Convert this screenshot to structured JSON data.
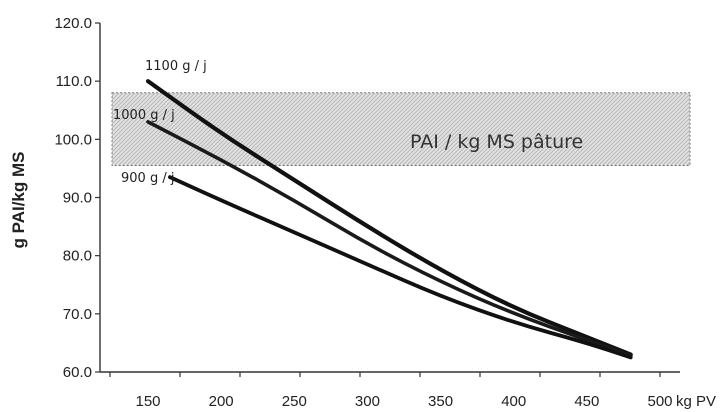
{
  "chart_data": {
    "type": "line",
    "title": "",
    "xlabel": "",
    "ylabel": "g PAI/kg MS",
    "x_unit_label": "kg PV",
    "xlim": [
      100,
      500
    ],
    "ylim": [
      60.0,
      120.0
    ],
    "x_ticks": [
      150,
      200,
      250,
      300,
      350,
      400,
      450,
      500
    ],
    "y_ticks": [
      "60.0",
      "70.0",
      "80.0",
      "90.0",
      "100.0",
      "110.0",
      "120.0"
    ],
    "grid": false,
    "band": {
      "label": "PAI / kg MS pâture",
      "y_range": [
        95.5,
        108
      ],
      "x_range": [
        100,
        500
      ]
    },
    "series": [
      {
        "name": "1100 g / j",
        "x": [
          150,
          200,
          250,
          300,
          350,
          400,
          450,
          480
        ],
        "y": [
          110.0,
          101.0,
          93.0,
          85.0,
          77.5,
          71.0,
          66.0,
          63.0
        ]
      },
      {
        "name": "1000 g / j",
        "x": [
          150,
          200,
          250,
          300,
          350,
          400,
          450,
          480
        ],
        "y": [
          103.0,
          96.5,
          89.5,
          82.0,
          75.5,
          70.0,
          65.5,
          62.8
        ]
      },
      {
        "name": "900 g / j",
        "x": [
          165,
          200,
          250,
          300,
          350,
          400,
          450,
          480
        ],
        "y": [
          93.5,
          89.5,
          84.0,
          78.5,
          73.0,
          68.5,
          65.0,
          62.5
        ]
      }
    ]
  }
}
